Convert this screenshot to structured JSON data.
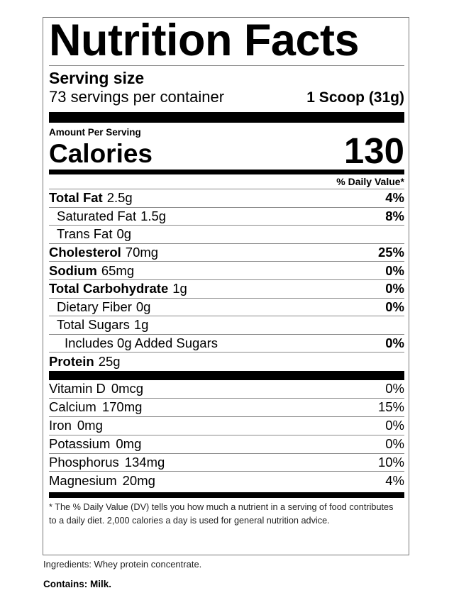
{
  "title": "Nutrition Facts",
  "serving": {
    "label": "Serving size",
    "servings_per_container": "73 servings per container",
    "size": "1 Scoop (31g)"
  },
  "amount_per_serving": "Amount Per Serving",
  "calories": {
    "label": "Calories",
    "value": "130"
  },
  "daily_value_header": "% Daily Value*",
  "nutrients": [
    {
      "name": "Total Fat",
      "amount": "2.5g",
      "dv": "4%"
    },
    {
      "name": "Saturated Fat",
      "amount": "1.5g",
      "dv": "8%"
    },
    {
      "name": "Trans Fat",
      "amount": "0g",
      "dv": ""
    },
    {
      "name": "Cholesterol",
      "amount": "70mg",
      "dv": "25%"
    },
    {
      "name": "Sodium",
      "amount": "65mg",
      "dv": "0%"
    },
    {
      "name": "Total Carbohydrate",
      "amount": "1g",
      "dv": "0%"
    },
    {
      "name": "Dietary Fiber",
      "amount": "0g",
      "dv": "0%"
    },
    {
      "name": "Total Sugars",
      "amount": "1g",
      "dv": ""
    },
    {
      "name": "Includes 0g Added Sugars",
      "amount": "",
      "dv": "0%"
    },
    {
      "name": "Protein",
      "amount": "25g",
      "dv": ""
    }
  ],
  "vitamins": [
    {
      "name": "Vitamin D",
      "amount": "0mcg",
      "dv": "0%"
    },
    {
      "name": "Calcium",
      "amount": "170mg",
      "dv": "15%"
    },
    {
      "name": "Iron",
      "amount": "0mg",
      "dv": "0%"
    },
    {
      "name": "Potassium",
      "amount": "0mg",
      "dv": "0%"
    },
    {
      "name": "Phosphorus",
      "amount": "134mg",
      "dv": "10%"
    },
    {
      "name": "Magnesium",
      "amount": "20mg",
      "dv": "4%"
    }
  ],
  "footnote": "* The % Daily Value (DV) tells you how much a nutrient in a serving of food contributes to a daily diet. 2,000 calories a day is used for general nutrition advice.",
  "ingredients": "Ingredients: Whey protein concentrate.",
  "contains": "Contains: Milk."
}
